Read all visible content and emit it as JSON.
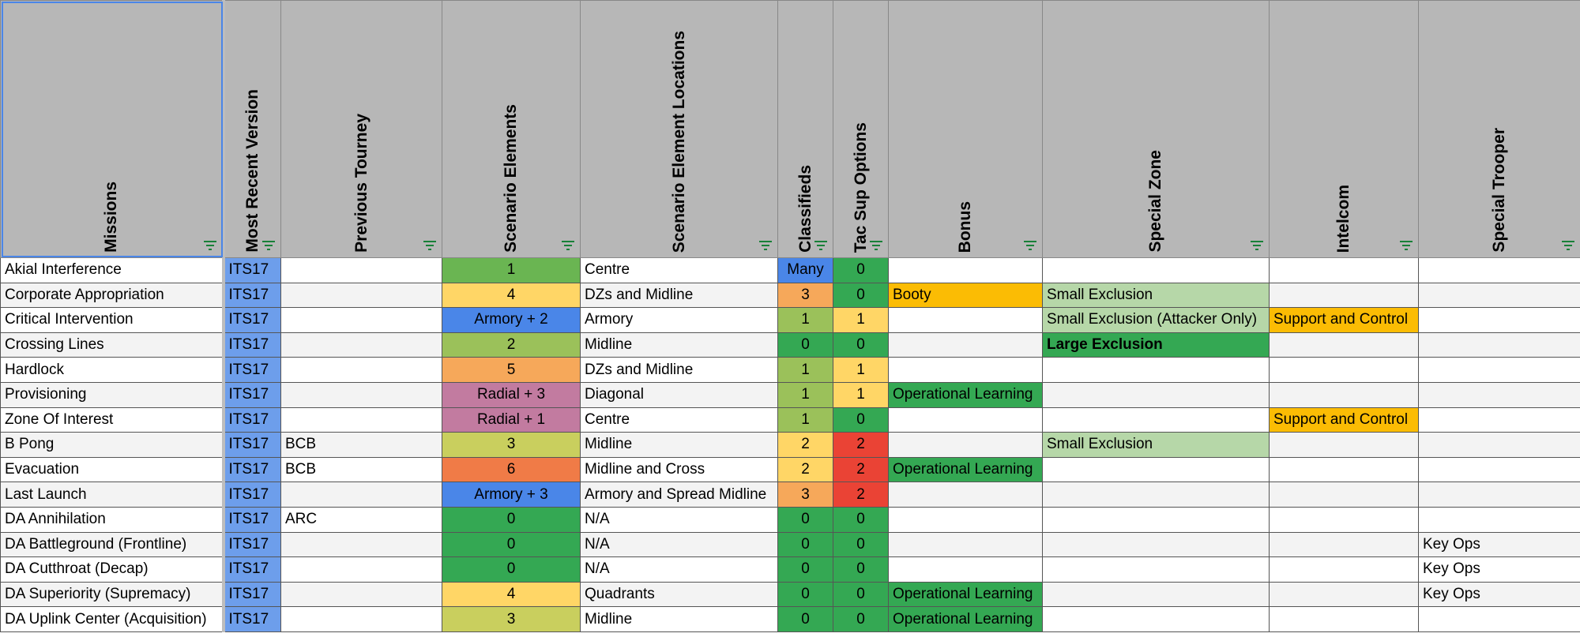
{
  "headers": [
    "Missions",
    "Most Recent Version",
    "Previous Tourney",
    "Scenario Elements",
    "Scenario Element Locations",
    "Classifieds",
    "Tac Sup Options",
    "Bonus",
    "Special Zone",
    "Intelcom",
    "Special Trooper"
  ],
  "rows": [
    [
      "Akial Interference",
      "ITS17",
      null,
      "1",
      "Centre",
      "Many",
      "0",
      null,
      null,
      null,
      null
    ],
    [
      "Corporate Appropriation",
      "ITS17",
      null,
      "4",
      "DZs and Midline",
      "3",
      "0",
      "Booty",
      "Small Exclusion",
      null,
      null
    ],
    [
      "Critical Intervention",
      "ITS17",
      null,
      "Armory + 2",
      "Armory",
      "1",
      "1",
      null,
      "Small Exclusion (Attacker Only)",
      "Support and Control",
      null
    ],
    [
      "Crossing Lines",
      "ITS17",
      null,
      "2",
      "Midline",
      "0",
      "0",
      null,
      "Large Exclusion",
      null,
      null
    ],
    [
      "Hardlock",
      "ITS17",
      null,
      "5",
      "DZs and Midline",
      "1",
      "1",
      null,
      null,
      null,
      null
    ],
    [
      "Provisioning",
      "ITS17",
      null,
      "Radial + 3",
      "Diagonal",
      "1",
      "1",
      "Operational Learning",
      null,
      null,
      null
    ],
    [
      "Zone Of Interest",
      "ITS17",
      null,
      "Radial + 1",
      "Centre",
      "1",
      "0",
      null,
      null,
      "Support and Control",
      null
    ],
    [
      "B Pong",
      "ITS17",
      "BCB",
      "3",
      "Midline",
      "2",
      "2",
      null,
      "Small Exclusion",
      null,
      null
    ],
    [
      "Evacuation",
      "ITS17",
      "BCB",
      "6",
      "Midline and Cross",
      "2",
      "2",
      "Operational Learning",
      null,
      null,
      null
    ],
    [
      "Last Launch",
      "ITS17",
      null,
      "Armory + 3",
      "Armory and Spread Midline",
      "3",
      "2",
      null,
      null,
      null,
      null
    ],
    [
      "DA Annihilation",
      "ITS17",
      "ARC",
      "0",
      "N/A",
      "0",
      "0",
      null,
      null,
      null,
      null
    ],
    [
      "DA Battleground (Frontline)",
      "ITS17",
      null,
      "0",
      "N/A",
      "0",
      "0",
      null,
      null,
      null,
      "Key Ops"
    ],
    [
      "DA Cutthroat (Decap)",
      "ITS17",
      null,
      "0",
      "N/A",
      "0",
      "0",
      null,
      null,
      null,
      "Key Ops"
    ],
    [
      "DA Superiority (Supremacy)",
      "ITS17",
      null,
      "4",
      "Quadrants",
      "0",
      "0",
      "Operational Learning",
      null,
      null,
      "Key Ops"
    ],
    [
      "DA Uplink Center (Acquisition)",
      "ITS17",
      null,
      "3",
      "Midline",
      "0",
      "0",
      "Operational Learning",
      null,
      null,
      null
    ]
  ],
  "fills": [
    [
      null,
      "#6d9eeb",
      null,
      "#6ab552",
      null,
      "#4a86e8",
      "#34a853",
      null,
      null,
      null,
      null
    ],
    [
      null,
      "#6d9eeb",
      null,
      "#ffd666",
      null,
      "#f6a85a",
      "#34a853",
      "#fbbc04",
      "#b6d7a8",
      null,
      null
    ],
    [
      null,
      "#6d9eeb",
      null,
      "#4a86e8",
      null,
      "#9bc15a",
      "#ffd666",
      null,
      "#b6d7a8",
      "#fbbc04",
      null
    ],
    [
      null,
      "#6d9eeb",
      null,
      "#9bc15a",
      null,
      "#34a853",
      "#34a853",
      null,
      "#34a853",
      null,
      null
    ],
    [
      null,
      "#6d9eeb",
      null,
      "#f6a85a",
      null,
      "#9bc15a",
      "#ffd666",
      null,
      null,
      null,
      null
    ],
    [
      null,
      "#6d9eeb",
      null,
      "#c27ba0",
      null,
      "#9bc15a",
      "#ffd666",
      "#34a853",
      null,
      null,
      null
    ],
    [
      null,
      "#6d9eeb",
      null,
      "#c27ba0",
      null,
      "#9bc15a",
      "#34a853",
      null,
      null,
      "#fbbc04",
      null
    ],
    [
      null,
      "#6d9eeb",
      null,
      "#c9cf5e",
      null,
      "#ffd666",
      "#ea4335",
      null,
      "#b6d7a8",
      null,
      null
    ],
    [
      null,
      "#6d9eeb",
      null,
      "#f07b47",
      null,
      "#ffd666",
      "#ea4335",
      "#34a853",
      null,
      null,
      null
    ],
    [
      null,
      "#6d9eeb",
      null,
      "#4a86e8",
      null,
      "#f6a85a",
      "#ea4335",
      null,
      null,
      null,
      null
    ],
    [
      null,
      "#6d9eeb",
      null,
      "#34a853",
      null,
      "#34a853",
      "#34a853",
      null,
      null,
      null,
      null
    ],
    [
      null,
      "#6d9eeb",
      null,
      "#34a853",
      null,
      "#34a853",
      "#34a853",
      null,
      null,
      null,
      null
    ],
    [
      null,
      "#6d9eeb",
      null,
      "#34a853",
      null,
      "#34a853",
      "#34a853",
      null,
      null,
      null,
      null
    ],
    [
      null,
      "#6d9eeb",
      null,
      "#ffd666",
      null,
      "#34a853",
      "#34a853",
      "#34a853",
      null,
      null,
      null
    ],
    [
      null,
      "#6d9eeb",
      null,
      "#c9cf5e",
      null,
      "#34a853",
      "#34a853",
      "#34a853",
      null,
      null,
      null
    ]
  ],
  "bold": [
    [
      3,
      8
    ]
  ]
}
